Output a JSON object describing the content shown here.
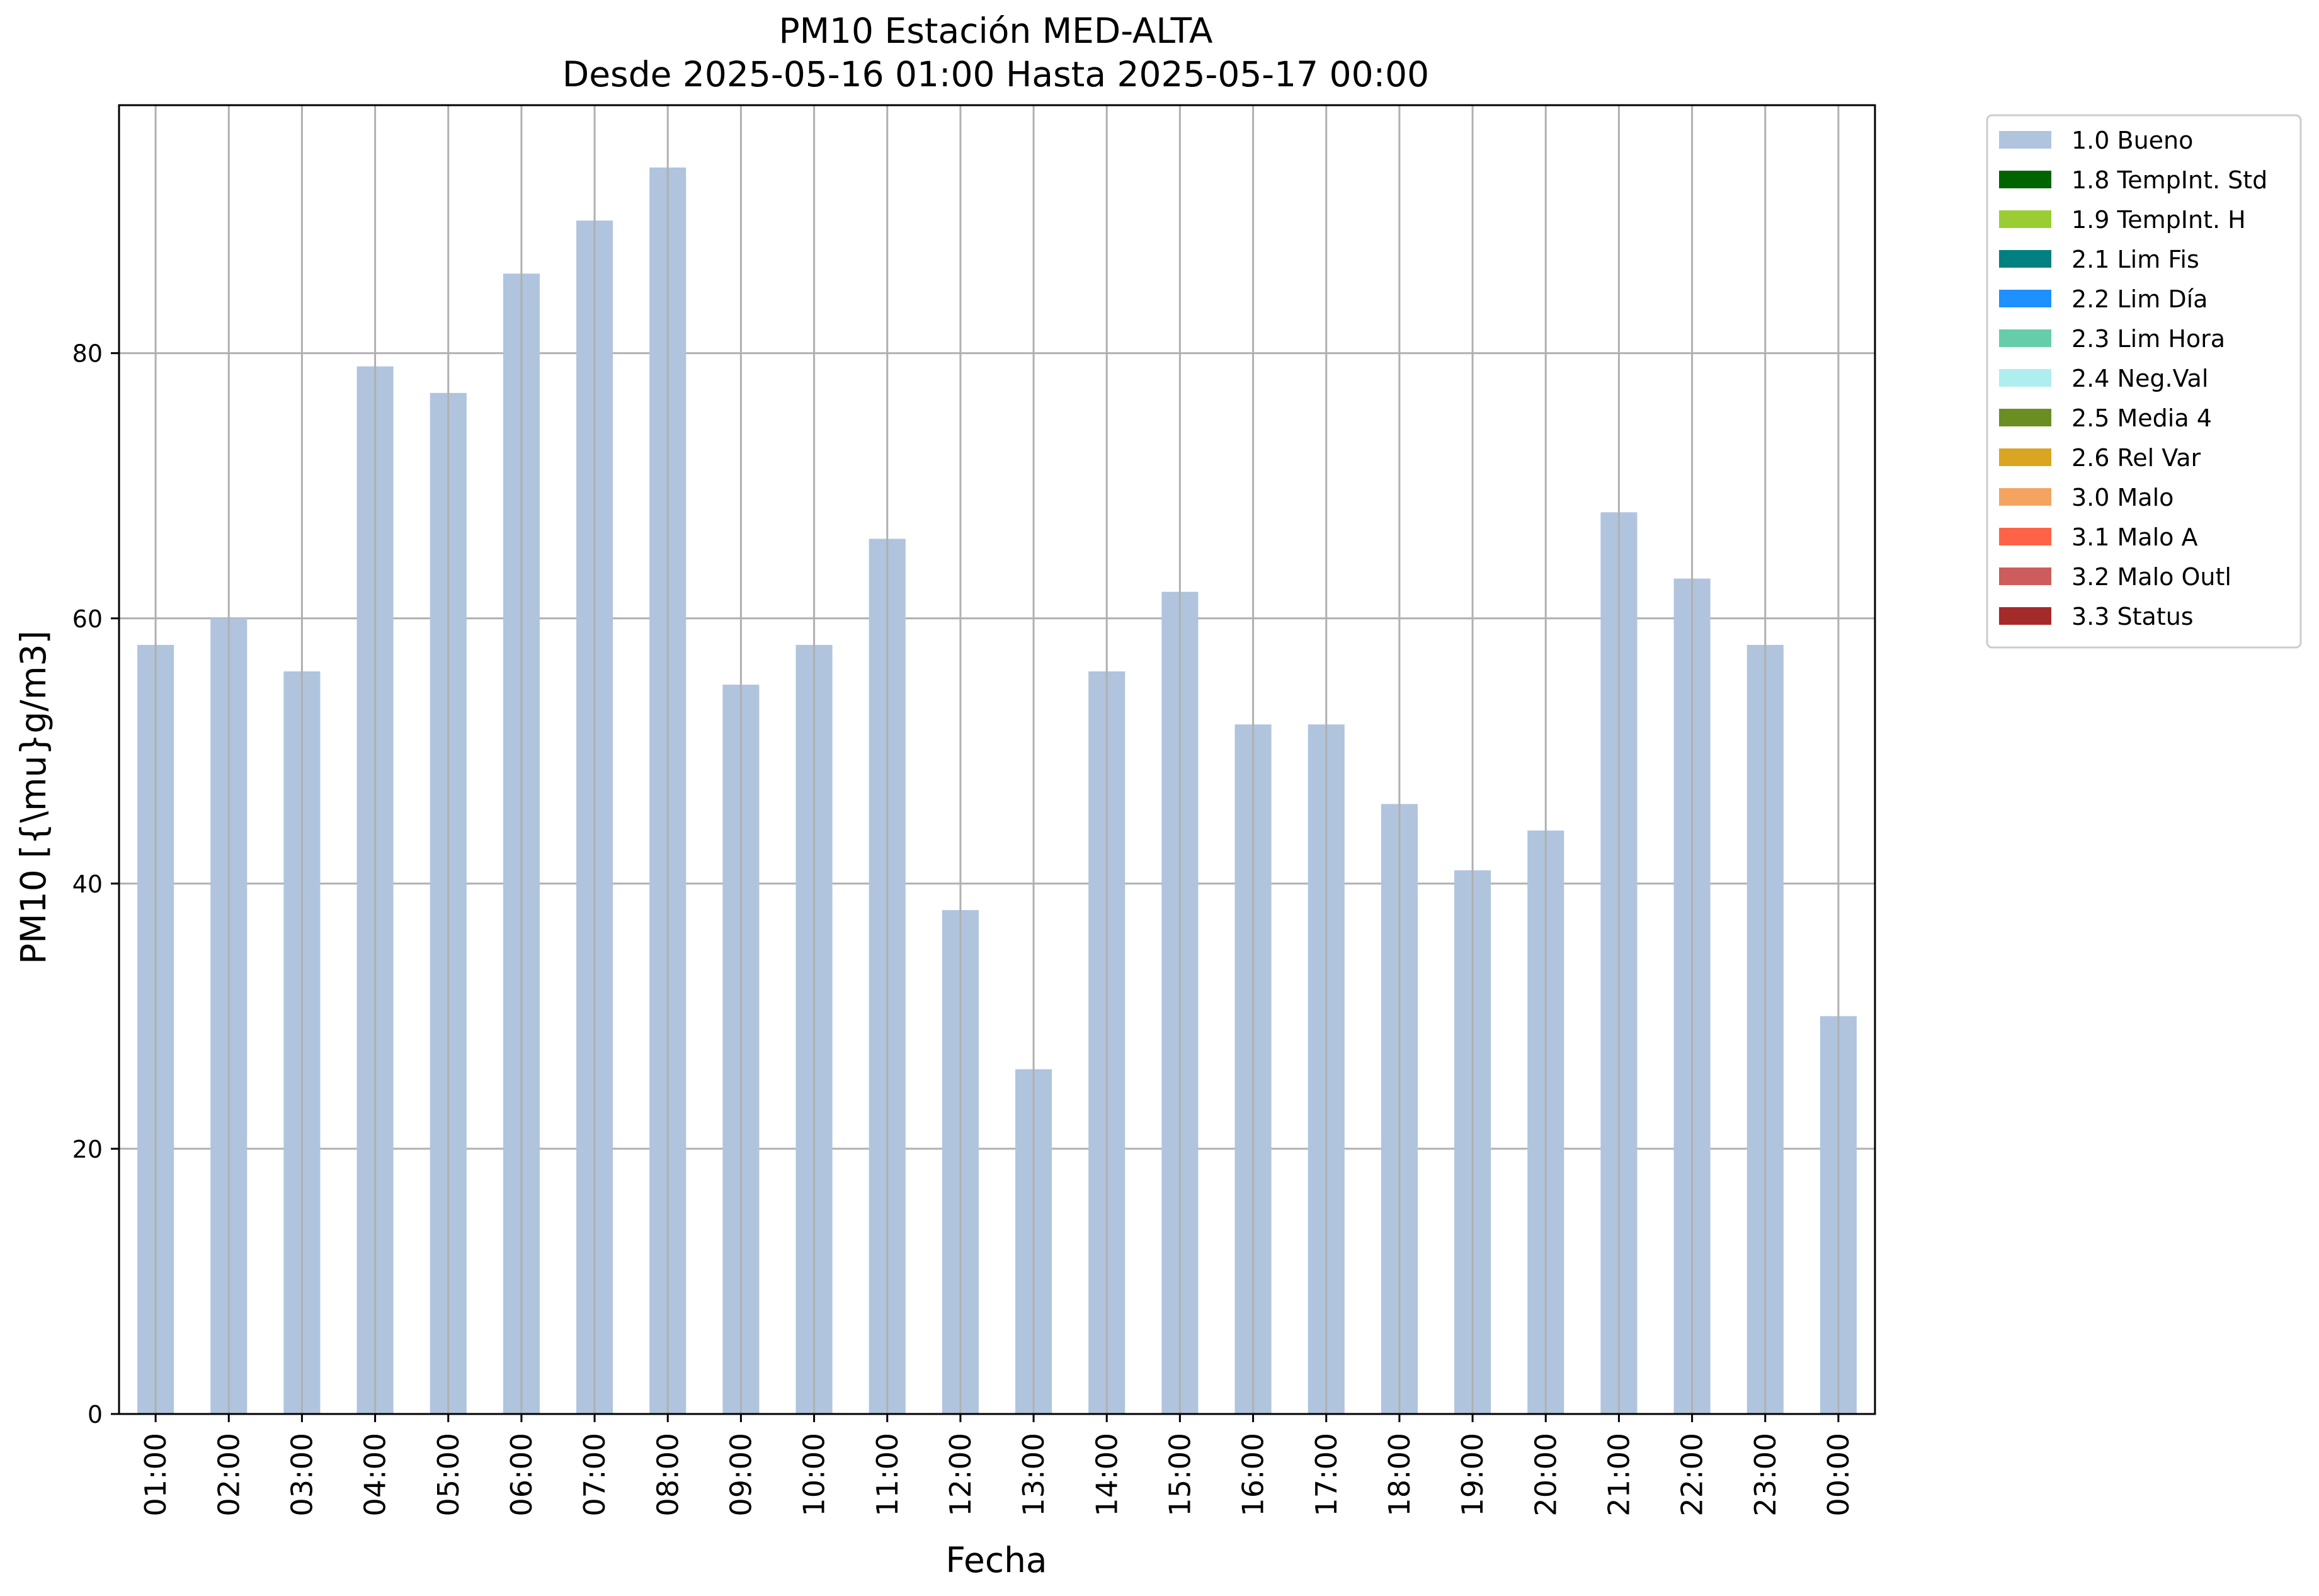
{
  "chart_data": {
    "type": "bar",
    "title": "PM10 Estación MED-ALTA",
    "subtitle": "Desde 2025-05-16 01:00 Hasta 2025-05-17 00:00",
    "xlabel": "Fecha",
    "ylabel": "PM10 [{\\mu}g/m3]",
    "ylim": [
      0,
      98.7
    ],
    "yticks": [
      0,
      20,
      40,
      60,
      80
    ],
    "grid": true,
    "legend_position": "outside-right",
    "categories": [
      "01:00",
      "02:00",
      "03:00",
      "04:00",
      "05:00",
      "06:00",
      "07:00",
      "08:00",
      "09:00",
      "10:00",
      "11:00",
      "12:00",
      "13:00",
      "14:00",
      "15:00",
      "16:00",
      "17:00",
      "18:00",
      "19:00",
      "20:00",
      "21:00",
      "22:00",
      "23:00",
      "00:00"
    ],
    "series": [
      {
        "name": "1.0 Bueno",
        "color": "#b0c4de",
        "values": [
          58,
          60,
          56,
          79,
          77,
          86,
          90,
          94,
          55,
          58,
          66,
          38,
          26,
          56,
          62,
          52,
          52,
          46,
          41,
          44,
          68,
          63,
          58,
          30
        ]
      }
    ],
    "legend": [
      {
        "label": "1.0 Bueno",
        "color": "#b0c4de"
      },
      {
        "label": "1.8 TempInt. Std",
        "color": "#006400"
      },
      {
        "label": "1.9 TempInt. H",
        "color": "#9acd32"
      },
      {
        "label": "2.1 Lim Fis",
        "color": "#008080"
      },
      {
        "label": "2.2 Lim Día",
        "color": "#1e90ff"
      },
      {
        "label": "2.3 Lim Hora",
        "color": "#66cdaa"
      },
      {
        "label": "2.4 Neg.Val",
        "color": "#afeeee"
      },
      {
        "label": "2.5 Media 4",
        "color": "#6b8e23"
      },
      {
        "label": "2.6 Rel Var",
        "color": "#daa520"
      },
      {
        "label": "3.0 Malo",
        "color": "#f4a460"
      },
      {
        "label": "3.1 Malo A",
        "color": "#ff6347"
      },
      {
        "label": "3.2 Malo Outl",
        "color": "#cd5c5c"
      },
      {
        "label": "3.3 Status",
        "color": "#a52a2a"
      }
    ]
  }
}
